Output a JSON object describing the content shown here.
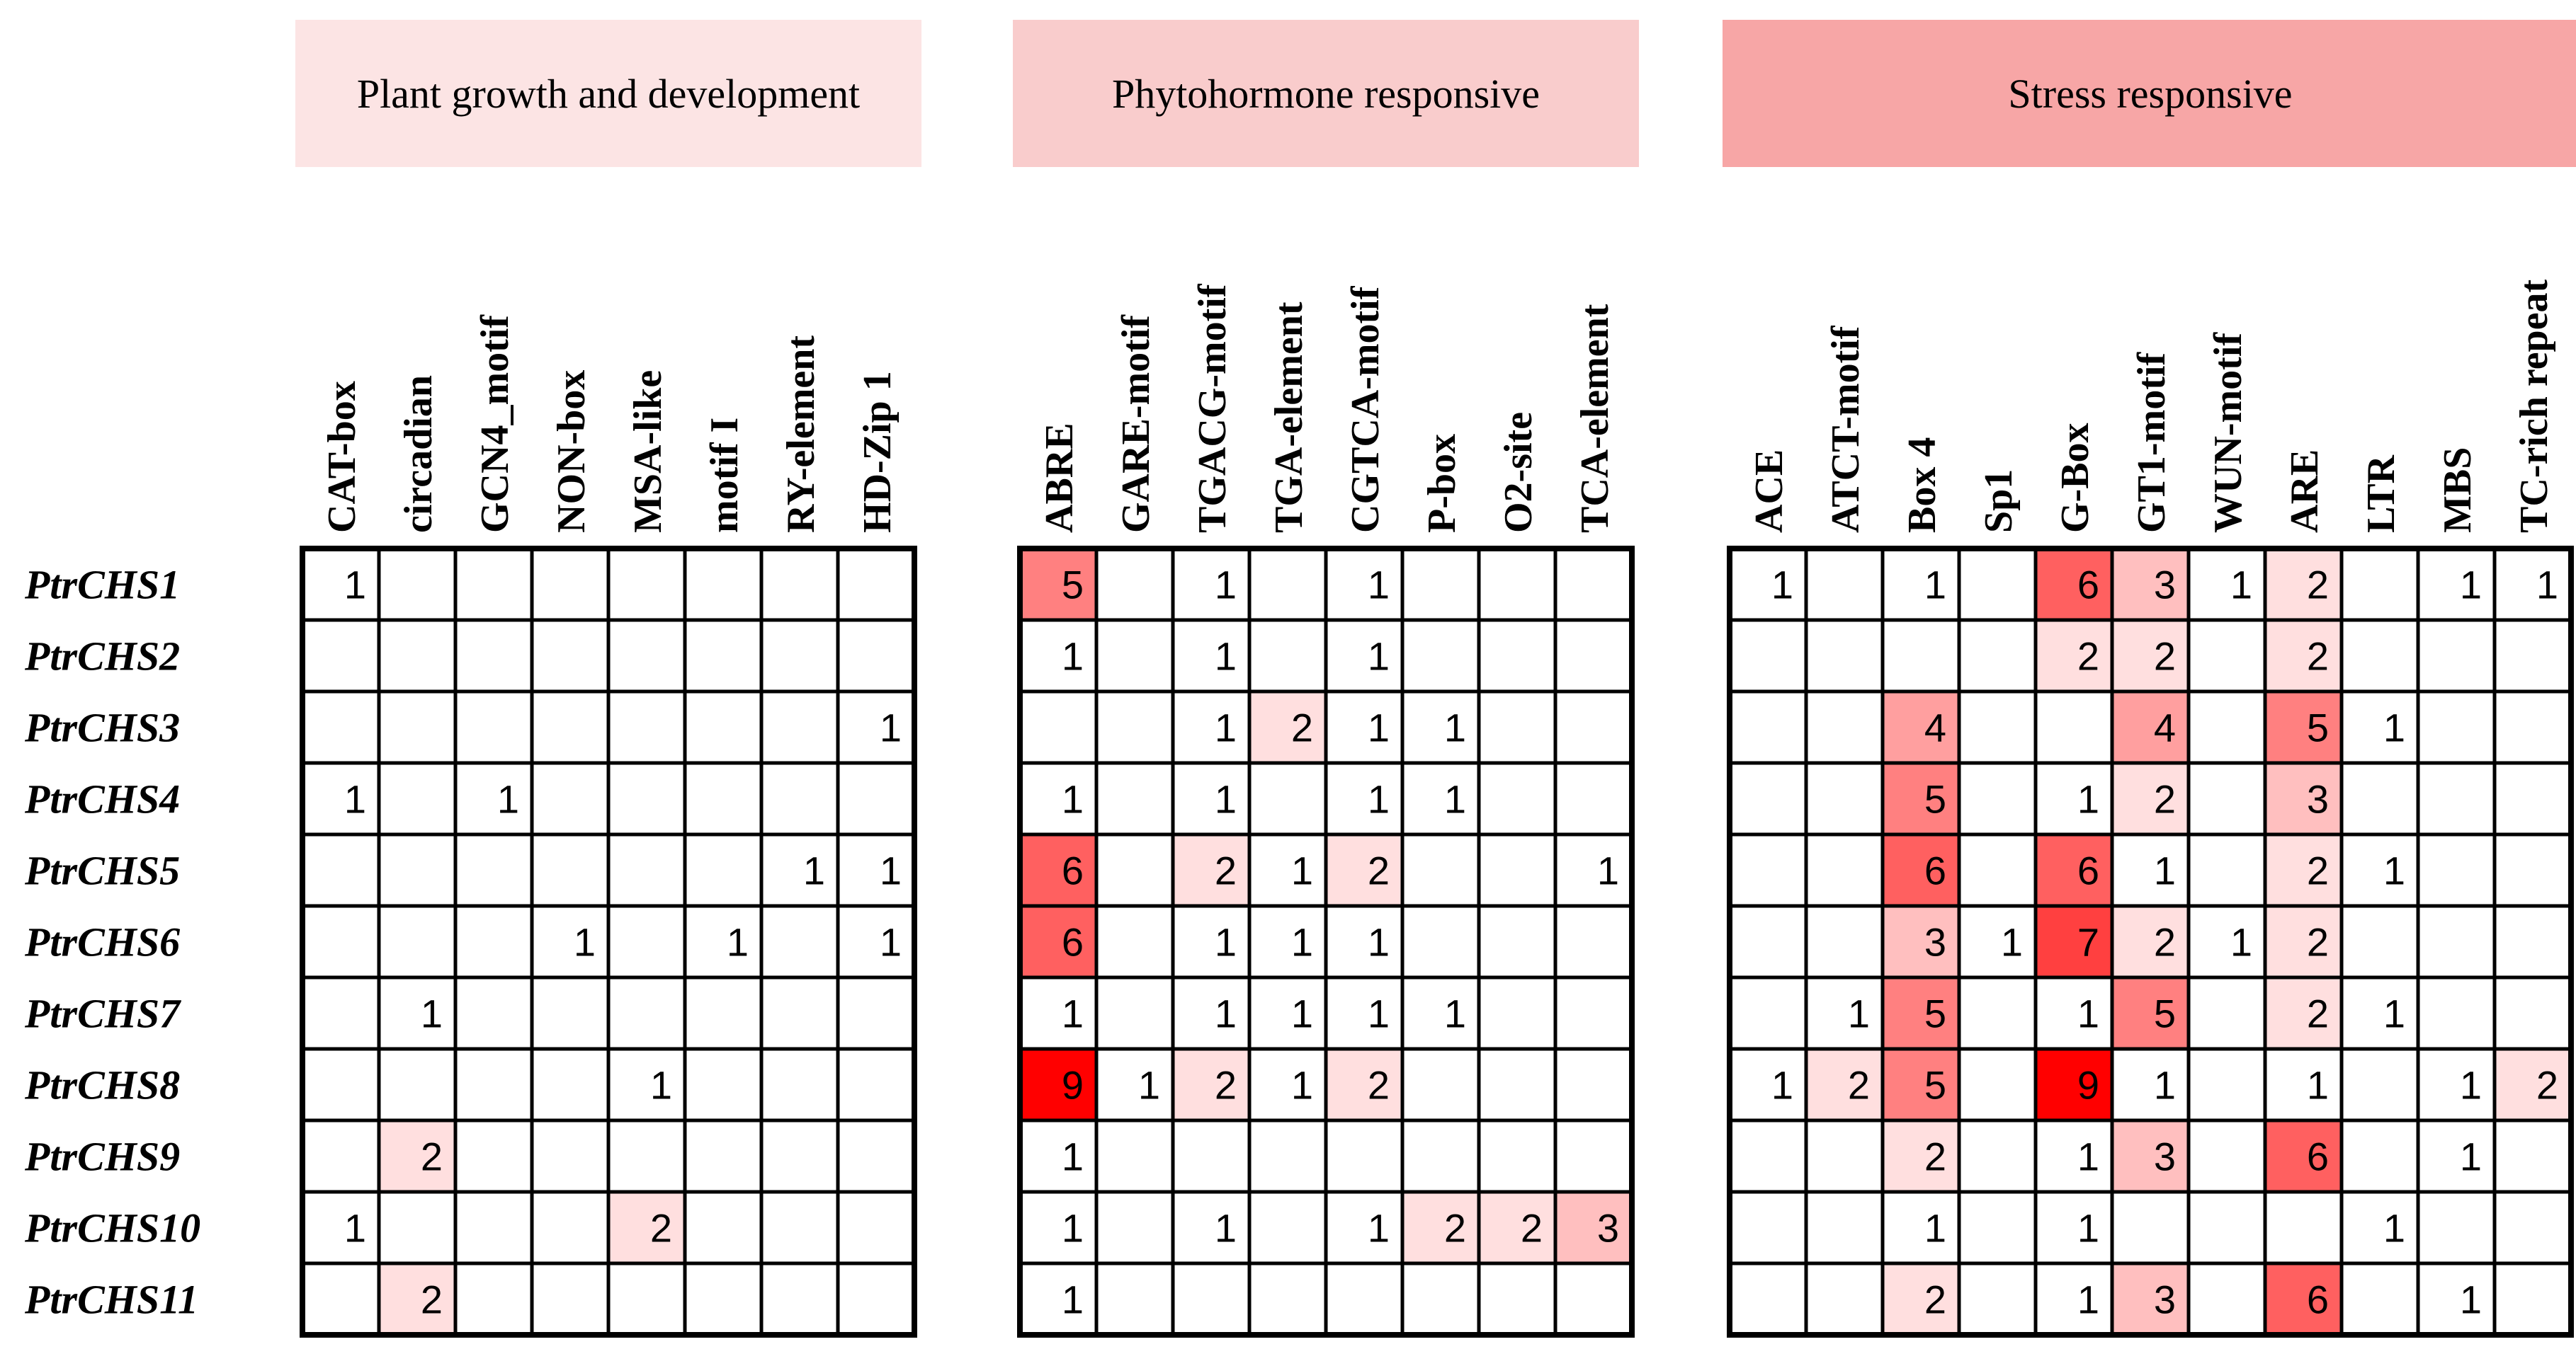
{
  "chart_data": {
    "type": "heatmap",
    "rows": [
      "PtrCHS1",
      "PtrCHS2",
      "PtrCHS3",
      "PtrCHS4",
      "PtrCHS5",
      "PtrCHS6",
      "PtrCHS7",
      "PtrCHS8",
      "PtrCHS9",
      "PtrCHS10",
      "PtrCHS11"
    ],
    "color_scale": {
      "min_value": 1,
      "max_value": 9,
      "low_color": "#ffffff",
      "high_color": "#ff0000"
    },
    "groups": [
      {
        "name": "Plant growth and development",
        "header_color": "#fce4e4",
        "columns": [
          "CAT-box",
          "circadian",
          "GCN4_motif",
          "NON-box",
          "MSA-like",
          "motif I",
          "RY-element",
          "HD-Zip 1"
        ],
        "values": [
          [
            1,
            null,
            null,
            null,
            null,
            null,
            null,
            null
          ],
          [
            null,
            null,
            null,
            null,
            null,
            null,
            null,
            null
          ],
          [
            null,
            null,
            null,
            null,
            null,
            null,
            null,
            1
          ],
          [
            1,
            null,
            1,
            null,
            null,
            null,
            null,
            null
          ],
          [
            null,
            null,
            null,
            null,
            null,
            null,
            1,
            1
          ],
          [
            null,
            null,
            null,
            1,
            null,
            1,
            null,
            1
          ],
          [
            null,
            1,
            null,
            null,
            null,
            null,
            null,
            null
          ],
          [
            null,
            null,
            null,
            null,
            1,
            null,
            null,
            null
          ],
          [
            null,
            2,
            null,
            null,
            null,
            null,
            null,
            null
          ],
          [
            1,
            null,
            null,
            null,
            2,
            null,
            null,
            null
          ],
          [
            null,
            2,
            null,
            null,
            null,
            null,
            null,
            null
          ]
        ]
      },
      {
        "name": "Phytohormone responsive",
        "header_color": "#f9cccc",
        "columns": [
          "ABRE",
          "GARE-motif",
          "TGACG-motif",
          "TGA-element",
          "CGTCA-motif",
          "P-box",
          "O2-site",
          "TCA-element"
        ],
        "values": [
          [
            5,
            null,
            1,
            null,
            1,
            null,
            null,
            null
          ],
          [
            1,
            null,
            1,
            null,
            1,
            null,
            null,
            null
          ],
          [
            null,
            null,
            1,
            2,
            1,
            1,
            null,
            null
          ],
          [
            1,
            null,
            1,
            null,
            1,
            1,
            null,
            null
          ],
          [
            6,
            null,
            2,
            1,
            2,
            null,
            null,
            1
          ],
          [
            6,
            null,
            1,
            1,
            1,
            null,
            null,
            null
          ],
          [
            1,
            null,
            1,
            1,
            1,
            1,
            null,
            null
          ],
          [
            9,
            1,
            2,
            1,
            2,
            null,
            null,
            null
          ],
          [
            1,
            null,
            null,
            null,
            null,
            null,
            null,
            null
          ],
          [
            1,
            null,
            1,
            null,
            1,
            2,
            2,
            3
          ],
          [
            1,
            null,
            null,
            null,
            null,
            null,
            null,
            null
          ]
        ]
      },
      {
        "name": "Stress responsive",
        "header_color": "#f7a6a6",
        "columns": [
          "ACE",
          "ATCT-motif",
          "Box 4",
          "Sp1",
          "G-Box",
          "GT1-motif",
          "WUN-motif",
          "ARE",
          "LTR",
          "MBS",
          "TC-rich repeat"
        ],
        "values": [
          [
            1,
            null,
            1,
            null,
            6,
            3,
            1,
            2,
            null,
            1,
            1
          ],
          [
            null,
            null,
            null,
            null,
            2,
            2,
            null,
            2,
            null,
            null,
            null
          ],
          [
            null,
            null,
            4,
            null,
            null,
            4,
            null,
            5,
            1,
            null,
            null
          ],
          [
            null,
            null,
            5,
            null,
            1,
            2,
            null,
            3,
            null,
            null,
            null
          ],
          [
            null,
            null,
            6,
            null,
            6,
            1,
            null,
            2,
            1,
            null,
            null
          ],
          [
            null,
            null,
            3,
            1,
            7,
            2,
            1,
            2,
            null,
            null,
            null
          ],
          [
            null,
            1,
            5,
            null,
            1,
            5,
            null,
            2,
            1,
            null,
            null
          ],
          [
            1,
            2,
            5,
            null,
            9,
            1,
            null,
            1,
            null,
            1,
            2
          ],
          [
            null,
            null,
            2,
            null,
            1,
            3,
            null,
            6,
            null,
            1,
            null
          ],
          [
            null,
            null,
            1,
            null,
            1,
            null,
            null,
            null,
            1,
            null,
            null
          ],
          [
            null,
            null,
            2,
            null,
            1,
            3,
            null,
            6,
            null,
            1,
            null
          ]
        ]
      }
    ]
  }
}
